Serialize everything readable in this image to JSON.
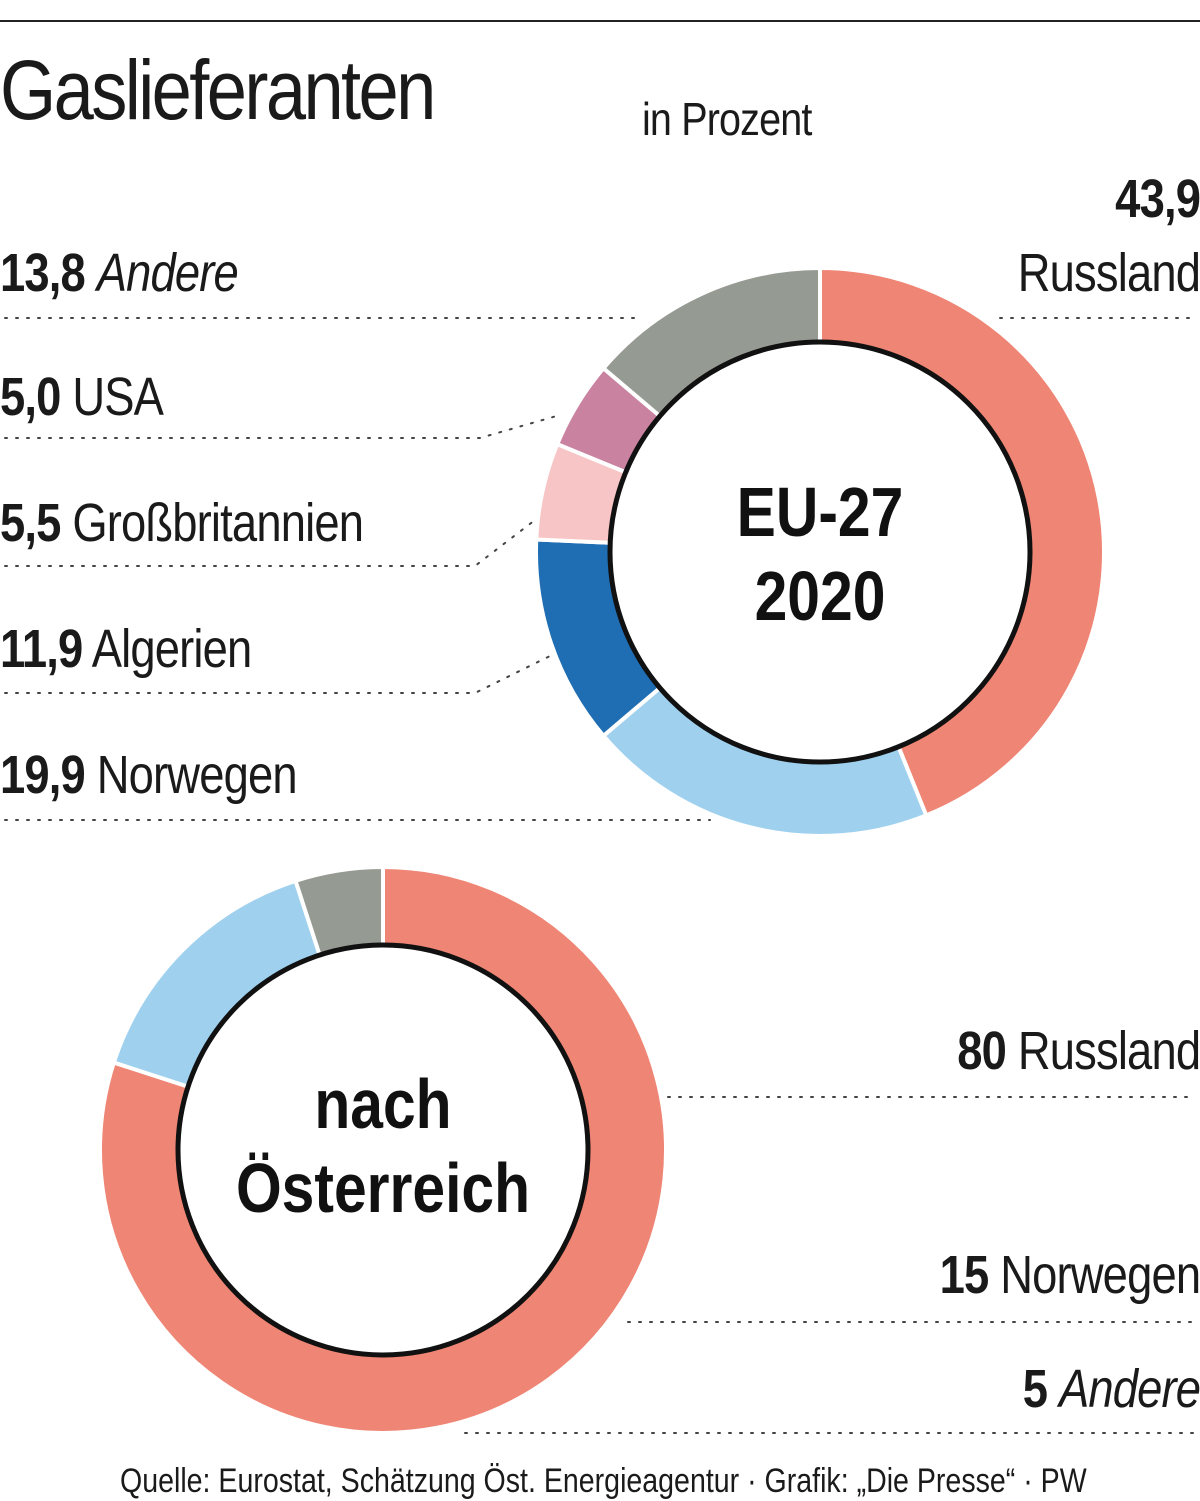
{
  "title": "Gaslieferanten",
  "subtitle": "in Prozent",
  "source": "Quelle: Eurostat, Schätzung Öst. Energieagentur  · Grafik: „Die Presse“ · PW",
  "colors": {
    "Russland": "#ef8574",
    "Norwegen": "#9fd1ef",
    "Algerien": "#1f6eb4",
    "Großbritannien": "#f7c5c5",
    "USA": "#c983a0",
    "Andere": "#959a92"
  },
  "chart_data": [
    {
      "type": "pie",
      "variant": "donut",
      "center_label": [
        "EU-27",
        "2020"
      ],
      "slices": [
        {
          "name": "Russland",
          "value": 43.9,
          "value_label": "43,9"
        },
        {
          "name": "Norwegen",
          "value": 19.9,
          "value_label": "19,9"
        },
        {
          "name": "Algerien",
          "value": 11.9,
          "value_label": "11,9"
        },
        {
          "name": "Großbritannien",
          "value": 5.5,
          "value_label": "5,5"
        },
        {
          "name": "USA",
          "value": 5.0,
          "value_label": "5,0"
        },
        {
          "name": "Andere",
          "value": 13.8,
          "value_label": "13,8"
        }
      ]
    },
    {
      "type": "pie",
      "variant": "donut",
      "center_label": [
        "nach",
        "Österreich"
      ],
      "slices": [
        {
          "name": "Russland",
          "value": 80,
          "value_label": "80"
        },
        {
          "name": "Norwegen",
          "value": 15,
          "value_label": "15"
        },
        {
          "name": "Andere",
          "value": 5,
          "value_label": "5"
        }
      ]
    }
  ]
}
